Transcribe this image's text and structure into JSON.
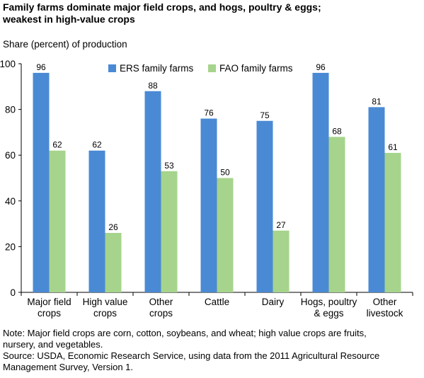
{
  "title_line1": "Family farms dominate major field crops, and hogs, poultry & eggs;",
  "title_line2": "weakest in high-value crops",
  "y_axis_label": "Share (percent) of production",
  "note_line1": "Note: Major field crops are corn, cotton, soybeans, and wheat; high value crops are fruits,",
  "note_line2": "nursery, and vegetables.",
  "source_line1": "Source: USDA, Economic Research Service, using data from the 2011 Agricultural Resource",
  "source_line2": "Management Survey, Version 1.",
  "colors": {
    "ers": "#4a8ad4",
    "fao": "#a6d48c"
  },
  "chart_data": {
    "type": "bar",
    "categories": [
      [
        "Major field",
        "crops"
      ],
      [
        "High value",
        "crops"
      ],
      [
        "Other",
        "crops"
      ],
      [
        "Cattle"
      ],
      [
        "Dairy"
      ],
      [
        "Hogs, poultry",
        "& eggs"
      ],
      [
        "Other",
        "livestock"
      ]
    ],
    "series": [
      {
        "name": "ERS family farms",
        "values": [
          96,
          62,
          88,
          76,
          75,
          96,
          81
        ]
      },
      {
        "name": "FAO family farms",
        "values": [
          62,
          26,
          53,
          50,
          27,
          68,
          61
        ]
      }
    ],
    "ylim": [
      0,
      100
    ],
    "yticks": [
      0,
      20,
      40,
      60,
      80,
      100
    ],
    "legend_position": "top-center",
    "grid": false
  }
}
